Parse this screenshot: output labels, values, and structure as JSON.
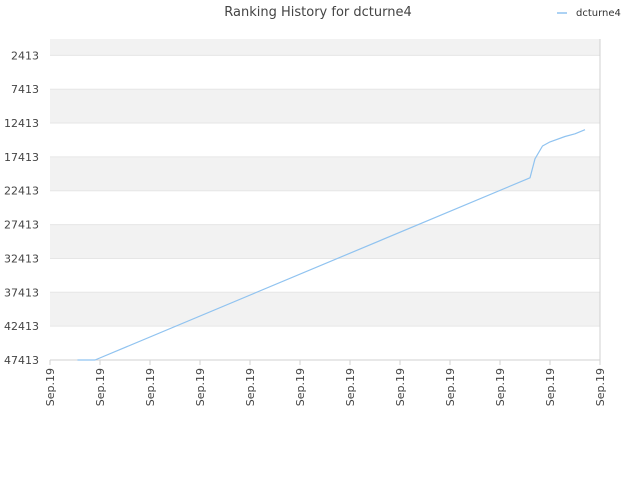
{
  "chart_data": {
    "type": "line",
    "title": "Ranking History for dcturne4",
    "xlabel": "",
    "ylabel": "",
    "y_inverted": true,
    "ylim": [
      47413,
      0
    ],
    "x_range": [
      0,
      11
    ],
    "y_ticks": [
      2413,
      7413,
      12413,
      17413,
      22413,
      27413,
      32413,
      37413,
      42413,
      47413
    ],
    "y_tick_labels": [
      "2413",
      "7413",
      "12413",
      "17413",
      "22413",
      "27413",
      "32413",
      "37413",
      "42413",
      "47413"
    ],
    "x_tick_labels": [
      "Sep.19",
      "Sep.19",
      "Sep.19",
      "Sep.19",
      "Sep.19",
      "Sep.19",
      "Sep.19",
      "Sep.19",
      "Sep.19",
      "Sep.19",
      "Sep.19",
      "Sep.19"
    ],
    "grid": "horizontal bands",
    "legend_position": "top-right",
    "series": [
      {
        "name": "dcturne4",
        "color": "#90c3f0",
        "x": [
          0.55,
          0.9,
          9.6,
          9.7,
          9.85,
          10.0,
          10.3,
          10.5,
          10.7
        ],
        "values": [
          47413,
          47413,
          20500,
          17700,
          15800,
          15200,
          14400,
          14000,
          13400
        ]
      }
    ]
  },
  "colors": {
    "band_light": "#f2f2f2",
    "band_white": "#ffffff",
    "grid_line": "#e6e6e6",
    "axis_line": "#d0d0d0"
  }
}
